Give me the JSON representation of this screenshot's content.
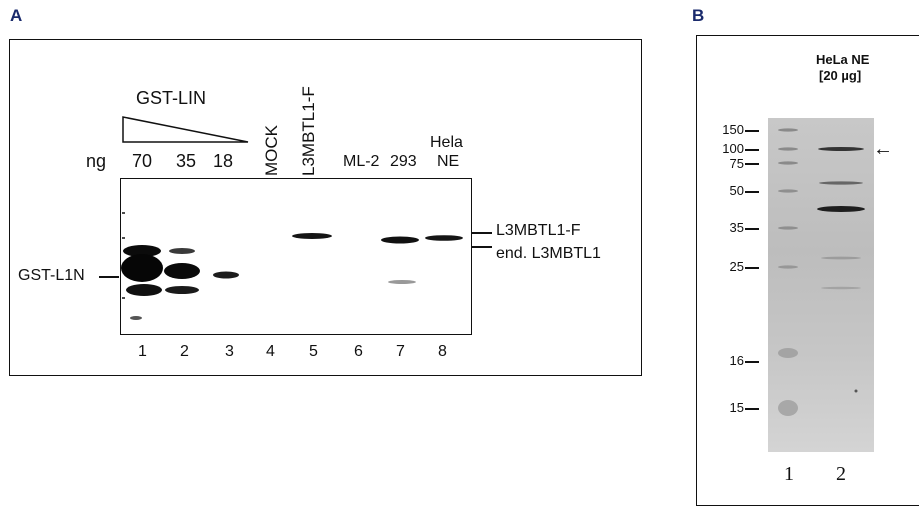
{
  "panelA": {
    "letter": "A",
    "gst_lin_label": "GST-LIN",
    "ng_label": "ng",
    "amounts": [
      "70",
      "35",
      "18"
    ],
    "mock_label": "MOCK",
    "l3mbtl1f_label": "L3MBTL1-F",
    "ml2_label": "ML-2",
    "l293_label": "293",
    "hela_label": "Hela",
    "ne_label": "NE",
    "gst_l1n_label": "GST-L1N",
    "right_labels": [
      "L3MBTL1-F",
      "end. L3MBTL1"
    ],
    "lanes": [
      "1",
      "2",
      "3",
      "4",
      "5",
      "6",
      "7",
      "8"
    ]
  },
  "panelB": {
    "letter": "B",
    "title_line1": "HeLa NE",
    "title_line2": "[20 µg]",
    "markers": [
      "150",
      "100",
      "75",
      "50",
      "35",
      "25",
      "16",
      "15"
    ],
    "arrow": "←",
    "lanes": [
      "1",
      "2"
    ]
  }
}
